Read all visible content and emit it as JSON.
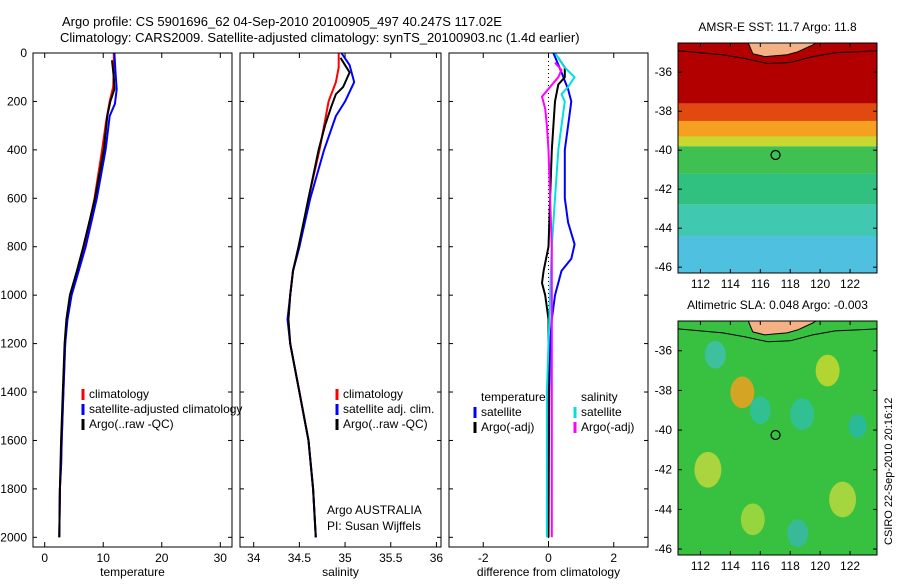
{
  "header": {
    "line1": "Argo profile: CS 5901696_62 04-Sep-2010 20100905_497 40.247S 117.02E",
    "line2": "Climatology: CARS2009. Satellite-adjusted climatology: synTS_20100903.nc (1.4d earlier)"
  },
  "credit": "CSIRO 22-Sep-2010 20:16:12",
  "chart_data": [
    {
      "type": "line",
      "title": "",
      "xlabel": "temperature",
      "ylabel": "",
      "xlim": [
        -2,
        32
      ],
      "ylim": [
        2040,
        0
      ],
      "xticks": [
        "0",
        "10",
        "20",
        "30"
      ],
      "yticks": [
        "0",
        "200",
        "400",
        "600",
        "800",
        "1000",
        "1200",
        "1400",
        "1600",
        "1800",
        "2000"
      ],
      "legend": {
        "position": "bottom-right",
        "entries": [
          "climatology",
          "satellite-adjusted climatology",
          "Argo(..raw -QC)"
        ]
      },
      "series": [
        {
          "name": "climatology",
          "color": "#ff0000",
          "points": [
            [
              11.8,
              0
            ],
            [
              11.8,
              60
            ],
            [
              11.7,
              140
            ],
            [
              11.1,
              200
            ],
            [
              10.5,
              280
            ],
            [
              9.8,
              400
            ],
            [
              8.5,
              600
            ],
            [
              6.8,
              800
            ],
            [
              5.7,
              900
            ],
            [
              4.5,
              1000
            ],
            [
              3.8,
              1100
            ],
            [
              3.5,
              1200
            ],
            [
              3.2,
              1400
            ],
            [
              2.9,
              1600
            ],
            [
              2.8,
              1700
            ],
            [
              2.6,
              1800
            ],
            [
              2.5,
              2000
            ]
          ]
        },
        {
          "name": "satellite-adjusted climatology",
          "color": "#0000ff",
          "points": [
            [
              11.9,
              0
            ],
            [
              12.1,
              80
            ],
            [
              12.3,
              150
            ],
            [
              12.0,
              210
            ],
            [
              11.1,
              260
            ],
            [
              10.4,
              400
            ],
            [
              8.9,
              600
            ],
            [
              7.0,
              800
            ],
            [
              5.8,
              900
            ],
            [
              4.6,
              1000
            ],
            [
              3.9,
              1100
            ],
            [
              3.5,
              1200
            ],
            [
              3.2,
              1400
            ],
            [
              2.9,
              1600
            ],
            [
              2.8,
              1700
            ],
            [
              2.6,
              1800
            ],
            [
              2.5,
              2000
            ]
          ]
        },
        {
          "name": "Argo(..raw -QC)",
          "color": "#000000",
          "points": [
            [
              11.5,
              30
            ],
            [
              11.8,
              100
            ],
            [
              11.9,
              150
            ],
            [
              11.2,
              200
            ],
            [
              10.7,
              260
            ],
            [
              10.1,
              400
            ],
            [
              8.6,
              600
            ],
            [
              6.6,
              800
            ],
            [
              5.5,
              900
            ],
            [
              4.3,
              1000
            ],
            [
              3.7,
              1100
            ],
            [
              3.4,
              1200
            ],
            [
              3.1,
              1400
            ],
            [
              2.8,
              1600
            ],
            [
              2.7,
              1700
            ],
            [
              2.6,
              1800
            ],
            [
              2.5,
              2000
            ]
          ]
        }
      ]
    },
    {
      "type": "line",
      "title": "",
      "xlabel": "salinity",
      "ylabel": "",
      "xlim": [
        33.85,
        36.05
      ],
      "ylim": [
        2040,
        0
      ],
      "xticks": [
        "34",
        "34.5",
        "35",
        "35.5",
        "36"
      ],
      "yticks": [],
      "legend": {
        "position": "bottom-right",
        "entries": [
          "climatology",
          "satellite adj. clim.",
          "Argo(..raw -QC)"
        ]
      },
      "annotation": [
        "Argo AUSTRALIA",
        "PI: Susan Wijffels"
      ],
      "series": [
        {
          "name": "climatology",
          "color": "#ff0000",
          "points": [
            [
              34.93,
              0
            ],
            [
              34.93,
              60
            ],
            [
              34.9,
              120
            ],
            [
              34.82,
              200
            ],
            [
              34.78,
              280
            ],
            [
              34.72,
              400
            ],
            [
              34.6,
              600
            ],
            [
              34.5,
              800
            ],
            [
              34.43,
              900
            ],
            [
              34.4,
              1000
            ],
            [
              34.38,
              1100
            ],
            [
              34.4,
              1200
            ],
            [
              34.5,
              1400
            ],
            [
              34.6,
              1600
            ],
            [
              34.65,
              1800
            ],
            [
              34.68,
              2000
            ]
          ]
        },
        {
          "name": "satellite adj. clim.",
          "color": "#0000ff",
          "points": [
            [
              34.96,
              0
            ],
            [
              35.05,
              50
            ],
            [
              35.1,
              120
            ],
            [
              35.0,
              200
            ],
            [
              34.9,
              260
            ],
            [
              34.77,
              400
            ],
            [
              34.62,
              600
            ],
            [
              34.5,
              800
            ],
            [
              34.43,
              900
            ],
            [
              34.4,
              1000
            ],
            [
              34.37,
              1100
            ],
            [
              34.4,
              1200
            ],
            [
              34.5,
              1400
            ],
            [
              34.6,
              1600
            ],
            [
              34.65,
              1800
            ],
            [
              34.68,
              2000
            ]
          ]
        },
        {
          "name": "Argo(..raw -QC)",
          "color": "#000000",
          "points": [
            [
              34.95,
              20
            ],
            [
              35.05,
              80
            ],
            [
              34.98,
              140
            ],
            [
              34.9,
              170
            ],
            [
              34.85,
              220
            ],
            [
              34.78,
              300
            ],
            [
              34.71,
              400
            ],
            [
              34.6,
              600
            ],
            [
              34.49,
              800
            ],
            [
              34.43,
              900
            ],
            [
              34.4,
              1000
            ],
            [
              34.38,
              1100
            ],
            [
              34.4,
              1200
            ],
            [
              34.5,
              1400
            ],
            [
              34.6,
              1600
            ],
            [
              34.65,
              1800
            ],
            [
              34.68,
              2000
            ]
          ]
        }
      ]
    },
    {
      "type": "line",
      "title": "",
      "xlabel": "difference from climatology",
      "ylabel": "",
      "xlim": [
        -3.05,
        3.05
      ],
      "ylim": [
        2040,
        0
      ],
      "xticks": [
        "-2",
        "0",
        "2"
      ],
      "yticks": [],
      "legend": {
        "position": "bottom-right",
        "columns": [
          [
            "temperature",
            "satellite",
            "Argo(-adj)"
          ],
          [
            "salinity",
            "satellite",
            "Argo(-adj)"
          ]
        ]
      },
      "series": [
        {
          "name": "temperature satellite",
          "color": "#0000ff",
          "points": [
            [
              0.15,
              0
            ],
            [
              0.4,
              80
            ],
            [
              0.6,
              150
            ],
            [
              0.7,
              200
            ],
            [
              0.6,
              300
            ],
            [
              0.5,
              400
            ],
            [
              0.5,
              600
            ],
            [
              0.6,
              700
            ],
            [
              0.8,
              790
            ],
            [
              0.7,
              850
            ],
            [
              0.4,
              900
            ],
            [
              0.2,
              1000
            ],
            [
              0.1,
              1100
            ],
            [
              0.05,
              1200
            ],
            [
              0.02,
              1400
            ],
            [
              0.0,
              2000
            ]
          ]
        },
        {
          "name": "temperature Argo(-adj)",
          "color": "#000000",
          "points": [
            [
              0.3,
              20
            ],
            [
              0.5,
              60
            ],
            [
              0.5,
              100
            ],
            [
              0.3,
              130
            ],
            [
              0.2,
              200
            ],
            [
              0.15,
              300
            ],
            [
              0.1,
              400
            ],
            [
              0.05,
              600
            ],
            [
              0.0,
              800
            ],
            [
              -0.15,
              900
            ],
            [
              -0.2,
              950
            ],
            [
              -0.1,
              1000
            ],
            [
              0.0,
              1100
            ],
            [
              0.0,
              1200
            ],
            [
              0.0,
              2000
            ]
          ]
        },
        {
          "name": "salinity satellite",
          "color": "#00e0e0",
          "points": [
            [
              0.2,
              0
            ],
            [
              0.5,
              60
            ],
            [
              0.8,
              100
            ],
            [
              0.6,
              140
            ],
            [
              0.4,
              170
            ],
            [
              0.5,
              200
            ],
            [
              0.4,
              300
            ],
            [
              0.3,
              400
            ],
            [
              0.2,
              600
            ],
            [
              0.1,
              800
            ],
            [
              0.05,
              1000
            ],
            [
              0.0,
              1200
            ],
            [
              -0.05,
              1400
            ],
            [
              -0.05,
              1600
            ],
            [
              -0.05,
              1800
            ],
            [
              -0.05,
              2000
            ]
          ]
        },
        {
          "name": "salinity Argo(-adj)",
          "color": "#ff00ff",
          "points": [
            [
              0.2,
              40
            ],
            [
              0.4,
              70
            ],
            [
              0.3,
              100
            ],
            [
              -0.2,
              180
            ],
            [
              -0.1,
              230
            ],
            [
              -0.05,
              300
            ],
            [
              0.0,
              400
            ],
            [
              0.05,
              600
            ],
            [
              0.1,
              800
            ],
            [
              0.1,
              1000
            ],
            [
              0.1,
              1200
            ],
            [
              0.1,
              1400
            ],
            [
              0.1,
              1600
            ],
            [
              0.1,
              1800
            ],
            [
              0.1,
              2000
            ]
          ]
        }
      ]
    },
    {
      "type": "heatmap",
      "title": "AMSR-E SST: 11.7 Argo: 11.8",
      "xlabel": "",
      "ylabel": "",
      "xlim": [
        110.5,
        123.8
      ],
      "ylim": [
        -46.3,
        -34.5
      ],
      "xticks": [
        "112",
        "114",
        "116",
        "118",
        "120",
        "122"
      ],
      "yticks": [
        "-36",
        "-38",
        "-40",
        "-42",
        "-44",
        "-46"
      ],
      "marker": {
        "lon": 117.02,
        "lat": -40.247
      },
      "bands": [
        {
          "lat_from": -34.5,
          "lat_to": -37.6,
          "color": "#b20000"
        },
        {
          "lat_from": -37.6,
          "lat_to": -38.5,
          "color": "#e04a10"
        },
        {
          "lat_from": -38.5,
          "lat_to": -39.3,
          "color": "#f5a020"
        },
        {
          "lat_from": -39.3,
          "lat_to": -39.8,
          "color": "#c8d830"
        },
        {
          "lat_from": -39.8,
          "lat_to": -41.2,
          "color": "#40c050"
        },
        {
          "lat_from": -41.2,
          "lat_to": -42.8,
          "color": "#30c080"
        },
        {
          "lat_from": -42.8,
          "lat_to": -44.4,
          "color": "#40c8b0"
        },
        {
          "lat_from": -44.4,
          "lat_to": -46.3,
          "color": "#50c0e0"
        }
      ],
      "land_color": "#f4b183"
    },
    {
      "type": "heatmap",
      "title": "Altimetric SLA: 0.048 Argo: -0.003",
      "xlabel": "",
      "ylabel": "",
      "xlim": [
        110.5,
        123.8
      ],
      "ylim": [
        -46.3,
        -34.5
      ],
      "xticks": [
        "112",
        "114",
        "116",
        "118",
        "120",
        "122"
      ],
      "yticks": [
        "-36",
        "-38",
        "-40",
        "-42",
        "-44",
        "-46"
      ],
      "marker": {
        "lon": 117.02,
        "lat": -40.247
      },
      "base_color": "#38c040",
      "blobs": [
        {
          "lon": 114.8,
          "lat": -38.1,
          "r": 0.8,
          "color": "#f0a020"
        },
        {
          "lon": 120.5,
          "lat": -37.0,
          "r": 0.8,
          "color": "#c8d830"
        },
        {
          "lon": 112.5,
          "lat": -42.0,
          "r": 0.9,
          "color": "#c0d840"
        },
        {
          "lon": 116.0,
          "lat": -39.0,
          "r": 0.7,
          "color": "#30c0a0"
        },
        {
          "lon": 118.8,
          "lat": -39.2,
          "r": 0.8,
          "color": "#30c0a0"
        },
        {
          "lon": 113.0,
          "lat": -36.2,
          "r": 0.7,
          "color": "#40c0b0"
        },
        {
          "lon": 121.5,
          "lat": -43.5,
          "r": 0.9,
          "color": "#b8d840"
        },
        {
          "lon": 115.5,
          "lat": -44.5,
          "r": 0.8,
          "color": "#a8d840"
        },
        {
          "lon": 118.5,
          "lat": -45.2,
          "r": 0.7,
          "color": "#38b8a8"
        },
        {
          "lon": 122.5,
          "lat": -39.8,
          "r": 0.6,
          "color": "#28b8a8"
        }
      ],
      "land_color": "#f4b183"
    }
  ]
}
